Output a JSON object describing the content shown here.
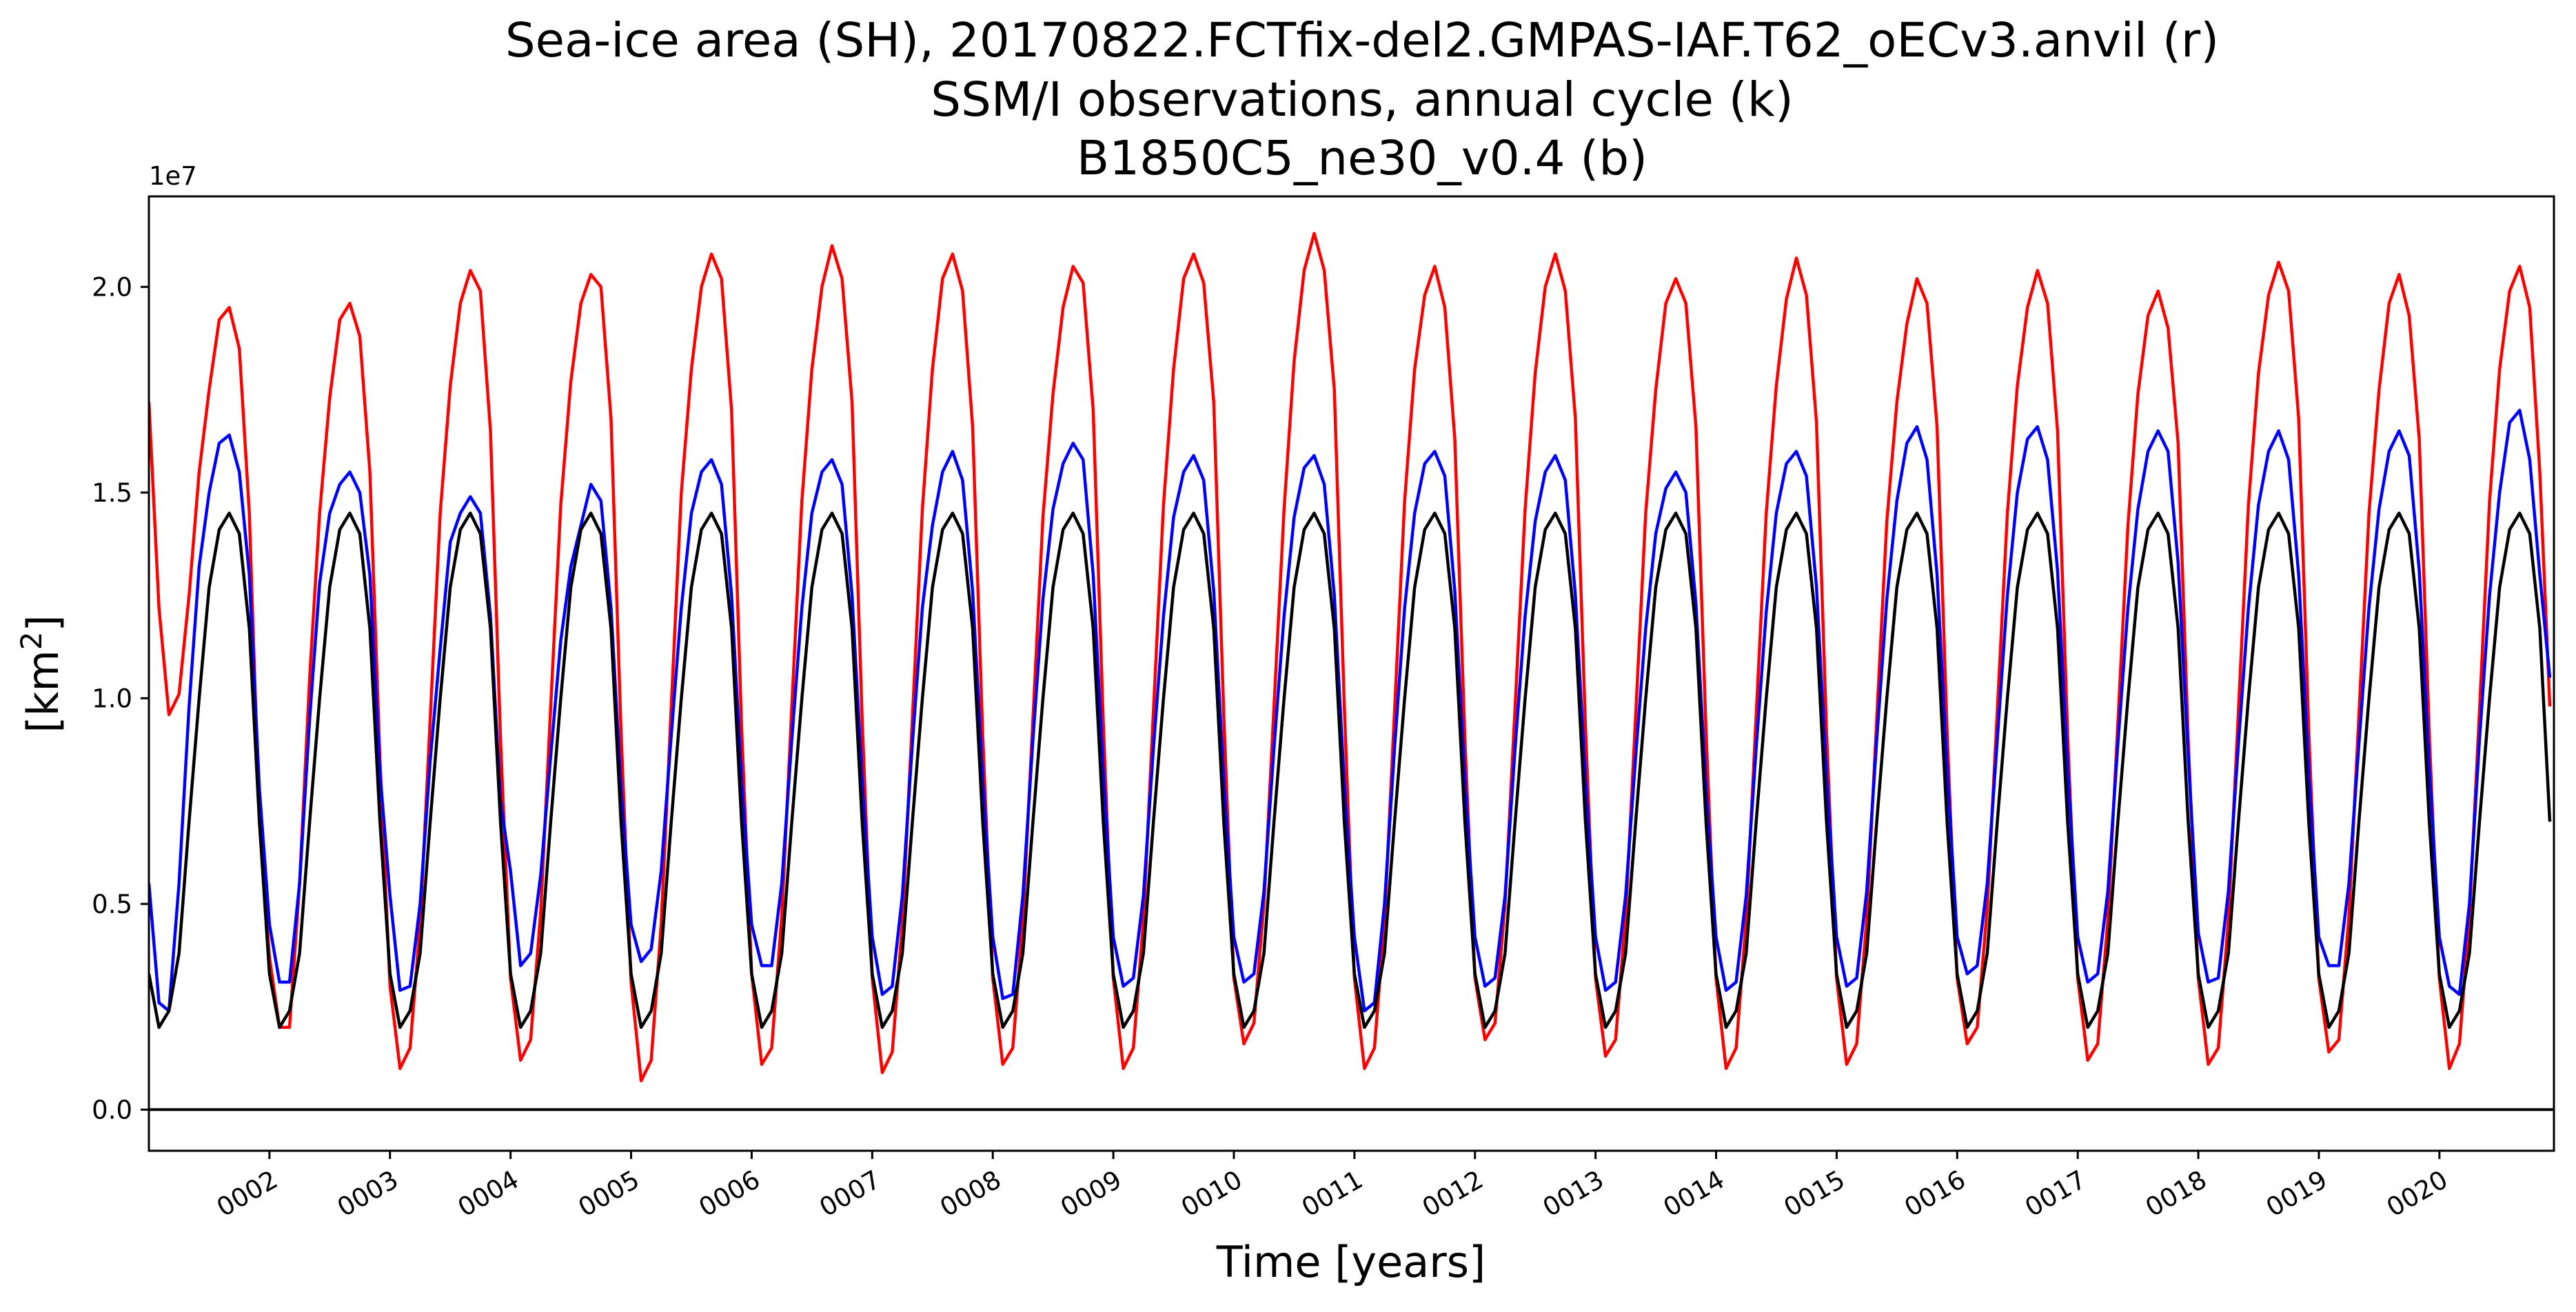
{
  "chart_data": {
    "type": "line",
    "title_lines": [
      "Sea-ice area (SH), 20170822.FCTfix-del2.GMPAS-IAF.T62_oECv3.anvil (r)",
      "SSM/I observations, annual cycle (k)",
      "B1850C5_ne30_v0.4 (b)"
    ],
    "xlabel": "Time [years]",
    "ylabel": "[km²]",
    "ylabel_base": "[km",
    "ylabel_sup": "2",
    "ylabel_close": "]",
    "y_offset_label": "1e7",
    "xlim": [
      1.0,
      20.95
    ],
    "ylim": [
      -0.1,
      2.22
    ],
    "x_ticks": [
      2,
      3,
      4,
      5,
      6,
      7,
      8,
      9,
      10,
      11,
      12,
      13,
      14,
      15,
      16,
      17,
      18,
      19,
      20
    ],
    "x_tick_labels": [
      "0002",
      "0003",
      "0004",
      "0005",
      "0006",
      "0007",
      "0008",
      "0009",
      "0010",
      "0011",
      "0012",
      "0013",
      "0014",
      "0015",
      "0016",
      "0017",
      "0018",
      "0019",
      "0020"
    ],
    "y_ticks": [
      0.0,
      0.5,
      1.0,
      1.5,
      2.0
    ],
    "y_tick_labels": [
      "0.0",
      "0.5",
      "1.0",
      "1.5",
      "2.0"
    ],
    "zero_line": true,
    "grid": false,
    "x_step": 0.08333,
    "colors": {
      "r": "#ff0000",
      "b": "#0000ff",
      "k": "#000000"
    },
    "series": [
      {
        "key": "r",
        "color": "#ff0000",
        "x_start": 1.0,
        "values": [
          1.72,
          1.22,
          0.96,
          1.01,
          1.25,
          1.55,
          1.75,
          1.92,
          1.95,
          1.85,
          1.45,
          0.7,
          0.37,
          0.2,
          0.2,
          0.55,
          1.05,
          1.45,
          1.73,
          1.92,
          1.96,
          1.88,
          1.55,
          0.85,
          0.3,
          0.1,
          0.15,
          0.45,
          0.95,
          1.45,
          1.76,
          1.96,
          2.04,
          1.99,
          1.65,
          0.9,
          0.32,
          0.12,
          0.17,
          0.48,
          0.98,
          1.47,
          1.77,
          1.96,
          2.03,
          2.0,
          1.68,
          0.92,
          0.31,
          0.07,
          0.12,
          0.45,
          0.98,
          1.5,
          1.8,
          2.0,
          2.08,
          2.02,
          1.7,
          0.93,
          0.33,
          0.11,
          0.15,
          0.47,
          0.98,
          1.48,
          1.8,
          2.0,
          2.1,
          2.02,
          1.72,
          0.95,
          0.32,
          0.09,
          0.14,
          0.45,
          0.95,
          1.46,
          1.8,
          2.02,
          2.08,
          1.99,
          1.66,
          0.91,
          0.32,
          0.11,
          0.15,
          0.46,
          0.95,
          1.44,
          1.74,
          1.95,
          2.05,
          2.01,
          1.7,
          0.94,
          0.32,
          0.1,
          0.15,
          0.46,
          0.97,
          1.47,
          1.8,
          2.02,
          2.08,
          2.01,
          1.72,
          0.96,
          0.32,
          0.16,
          0.21,
          0.5,
          0.98,
          1.46,
          1.82,
          2.04,
          2.13,
          2.04,
          1.75,
          0.98,
          0.32,
          0.1,
          0.15,
          0.46,
          0.97,
          1.48,
          1.8,
          1.98,
          2.05,
          1.95,
          1.63,
          0.9,
          0.32,
          0.17,
          0.21,
          0.5,
          0.98,
          1.46,
          1.79,
          2.0,
          2.08,
          1.99,
          1.68,
          0.93,
          0.32,
          0.13,
          0.17,
          0.47,
          0.96,
          1.45,
          1.75,
          1.96,
          2.02,
          1.96,
          1.66,
          0.92,
          0.32,
          0.1,
          0.15,
          0.46,
          0.96,
          1.45,
          1.76,
          1.97,
          2.07,
          1.98,
          1.67,
          0.92,
          0.32,
          0.11,
          0.16,
          0.46,
          0.95,
          1.43,
          1.72,
          1.91,
          2.02,
          1.96,
          1.66,
          0.92,
          0.32,
          0.16,
          0.2,
          0.49,
          0.97,
          1.45,
          1.76,
          1.95,
          2.04,
          1.96,
          1.65,
          0.91,
          0.32,
          0.12,
          0.16,
          0.46,
          0.94,
          1.42,
          1.74,
          1.93,
          1.99,
          1.9,
          1.62,
          0.9,
          0.32,
          0.11,
          0.15,
          0.46,
          0.97,
          1.47,
          1.79,
          1.98,
          2.06,
          1.99,
          1.68,
          0.92,
          0.32,
          0.14,
          0.17,
          0.47,
          0.96,
          1.45,
          1.75,
          1.96,
          2.03,
          1.93,
          1.63,
          0.91,
          0.32,
          0.1,
          0.16,
          0.47,
          0.97,
          1.48,
          1.8,
          1.99,
          2.05,
          1.95,
          1.55,
          0.98
        ]
      },
      {
        "key": "b",
        "color": "#0000ff",
        "x_start": 1.0,
        "values": [
          0.55,
          0.26,
          0.24,
          0.55,
          0.98,
          1.32,
          1.5,
          1.62,
          1.64,
          1.55,
          1.3,
          0.78,
          0.45,
          0.31,
          0.31,
          0.55,
          0.95,
          1.28,
          1.45,
          1.52,
          1.55,
          1.5,
          1.3,
          0.82,
          0.52,
          0.29,
          0.3,
          0.5,
          0.85,
          1.12,
          1.38,
          1.45,
          1.49,
          1.45,
          1.2,
          0.75,
          0.58,
          0.35,
          0.38,
          0.57,
          0.86,
          1.14,
          1.32,
          1.42,
          1.52,
          1.48,
          1.22,
          0.78,
          0.45,
          0.36,
          0.39,
          0.58,
          0.91,
          1.22,
          1.45,
          1.55,
          1.58,
          1.52,
          1.25,
          0.8,
          0.45,
          0.35,
          0.35,
          0.55,
          0.9,
          1.22,
          1.45,
          1.55,
          1.58,
          1.52,
          1.25,
          0.8,
          0.42,
          0.28,
          0.3,
          0.52,
          0.89,
          1.22,
          1.42,
          1.55,
          1.6,
          1.53,
          1.26,
          0.8,
          0.42,
          0.27,
          0.28,
          0.52,
          0.9,
          1.24,
          1.46,
          1.57,
          1.62,
          1.58,
          1.3,
          0.82,
          0.42,
          0.3,
          0.32,
          0.52,
          0.88,
          1.2,
          1.44,
          1.55,
          1.59,
          1.53,
          1.26,
          0.8,
          0.42,
          0.31,
          0.33,
          0.53,
          0.88,
          1.2,
          1.44,
          1.56,
          1.59,
          1.52,
          1.25,
          0.79,
          0.42,
          0.24,
          0.26,
          0.5,
          0.88,
          1.22,
          1.45,
          1.57,
          1.6,
          1.54,
          1.26,
          0.8,
          0.42,
          0.3,
          0.32,
          0.52,
          0.88,
          1.2,
          1.43,
          1.55,
          1.59,
          1.53,
          1.25,
          0.8,
          0.42,
          0.29,
          0.31,
          0.52,
          0.86,
          1.17,
          1.4,
          1.51,
          1.55,
          1.5,
          1.23,
          0.78,
          0.42,
          0.29,
          0.31,
          0.52,
          0.88,
          1.21,
          1.45,
          1.57,
          1.6,
          1.54,
          1.27,
          0.81,
          0.42,
          0.3,
          0.32,
          0.53,
          0.9,
          1.24,
          1.48,
          1.62,
          1.66,
          1.58,
          1.3,
          0.83,
          0.42,
          0.33,
          0.35,
          0.55,
          0.9,
          1.25,
          1.5,
          1.63,
          1.66,
          1.58,
          1.31,
          0.83,
          0.42,
          0.31,
          0.33,
          0.53,
          0.89,
          1.22,
          1.46,
          1.6,
          1.65,
          1.6,
          1.33,
          0.86,
          0.43,
          0.31,
          0.32,
          0.53,
          0.89,
          1.22,
          1.47,
          1.6,
          1.65,
          1.58,
          1.3,
          0.82,
          0.42,
          0.35,
          0.35,
          0.55,
          0.89,
          1.22,
          1.46,
          1.6,
          1.65,
          1.59,
          1.31,
          0.83,
          0.42,
          0.3,
          0.28,
          0.5,
          0.9,
          1.25,
          1.5,
          1.67,
          1.7,
          1.58,
          1.3,
          1.05
        ]
      },
      {
        "key": "k",
        "color": "#000000",
        "x_start": 1.0,
        "values": [
          0.33,
          0.2,
          0.24,
          0.38,
          0.7,
          1.0,
          1.27,
          1.41,
          1.45,
          1.4,
          1.17,
          0.7,
          0.33,
          0.2,
          0.24,
          0.38,
          0.7,
          1.0,
          1.27,
          1.41,
          1.45,
          1.4,
          1.17,
          0.7,
          0.33,
          0.2,
          0.24,
          0.38,
          0.7,
          1.0,
          1.27,
          1.41,
          1.45,
          1.4,
          1.17,
          0.7,
          0.33,
          0.2,
          0.24,
          0.38,
          0.7,
          1.0,
          1.27,
          1.41,
          1.45,
          1.4,
          1.17,
          0.7,
          0.33,
          0.2,
          0.24,
          0.38,
          0.7,
          1.0,
          1.27,
          1.41,
          1.45,
          1.4,
          1.17,
          0.7,
          0.33,
          0.2,
          0.24,
          0.38,
          0.7,
          1.0,
          1.27,
          1.41,
          1.45,
          1.4,
          1.17,
          0.7,
          0.33,
          0.2,
          0.24,
          0.38,
          0.7,
          1.0,
          1.27,
          1.41,
          1.45,
          1.4,
          1.17,
          0.7,
          0.33,
          0.2,
          0.24,
          0.38,
          0.7,
          1.0,
          1.27,
          1.41,
          1.45,
          1.4,
          1.17,
          0.7,
          0.33,
          0.2,
          0.24,
          0.38,
          0.7,
          1.0,
          1.27,
          1.41,
          1.45,
          1.4,
          1.17,
          0.7,
          0.33,
          0.2,
          0.24,
          0.38,
          0.7,
          1.0,
          1.27,
          1.41,
          1.45,
          1.4,
          1.17,
          0.7,
          0.33,
          0.2,
          0.24,
          0.38,
          0.7,
          1.0,
          1.27,
          1.41,
          1.45,
          1.4,
          1.17,
          0.7,
          0.33,
          0.2,
          0.24,
          0.38,
          0.7,
          1.0,
          1.27,
          1.41,
          1.45,
          1.4,
          1.17,
          0.7,
          0.33,
          0.2,
          0.24,
          0.38,
          0.7,
          1.0,
          1.27,
          1.41,
          1.45,
          1.4,
          1.17,
          0.7,
          0.33,
          0.2,
          0.24,
          0.38,
          0.7,
          1.0,
          1.27,
          1.41,
          1.45,
          1.4,
          1.17,
          0.7,
          0.33,
          0.2,
          0.24,
          0.38,
          0.7,
          1.0,
          1.27,
          1.41,
          1.45,
          1.4,
          1.17,
          0.7,
          0.33,
          0.2,
          0.24,
          0.38,
          0.7,
          1.0,
          1.27,
          1.41,
          1.45,
          1.4,
          1.17,
          0.7,
          0.33,
          0.2,
          0.24,
          0.38,
          0.7,
          1.0,
          1.27,
          1.41,
          1.45,
          1.4,
          1.17,
          0.7,
          0.33,
          0.2,
          0.24,
          0.38,
          0.7,
          1.0,
          1.27,
          1.41,
          1.45,
          1.4,
          1.17,
          0.7,
          0.33,
          0.2,
          0.24,
          0.38,
          0.7,
          1.0,
          1.27,
          1.41,
          1.45,
          1.4,
          1.17,
          0.7,
          0.33,
          0.2,
          0.24,
          0.38,
          0.7,
          1.0,
          1.27,
          1.41,
          1.45,
          1.4,
          1.17,
          0.7
        ]
      }
    ]
  }
}
